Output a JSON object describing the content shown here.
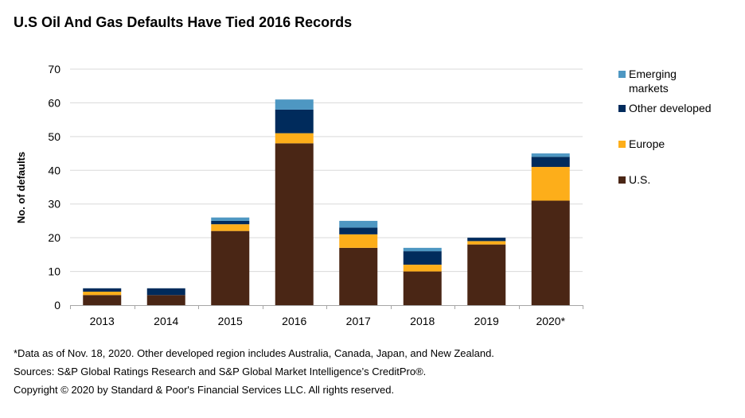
{
  "title": "U.S Oil And Gas Defaults Have Tied 2016 Records",
  "chart_data": {
    "type": "bar",
    "stacked": true,
    "title": "U.S Oil And Gas Defaults Have Tied 2016 Records",
    "xlabel": "",
    "ylabel": "No. of defaults",
    "ylim": [
      0,
      70
    ],
    "yticks": [
      0,
      10,
      20,
      30,
      40,
      50,
      60,
      70
    ],
    "grid": true,
    "legend_position": "right",
    "categories": [
      "2013",
      "2014",
      "2015",
      "2016",
      "2017",
      "2018",
      "2019",
      "2020*"
    ],
    "series": [
      {
        "name": "U.S.",
        "color": "#4a2615",
        "values": [
          3,
          3,
          22,
          48,
          17,
          10,
          18,
          31
        ]
      },
      {
        "name": "Europe",
        "color": "#fdae1a",
        "values": [
          1,
          0,
          2,
          3,
          4,
          2,
          1,
          10
        ]
      },
      {
        "name": "Other developed",
        "color": "#002b5c",
        "values": [
          1,
          2,
          1,
          7,
          2,
          4,
          1,
          3
        ]
      },
      {
        "name": "Emerging markets",
        "color": "#4e97c2",
        "values": [
          0,
          0,
          1,
          3,
          2,
          1,
          0,
          1
        ]
      }
    ],
    "legend_order": [
      "Emerging markets",
      "Other developed",
      "Europe",
      "U.S."
    ]
  },
  "legend": [
    {
      "label": "Emerging markets",
      "color": "#4e97c2"
    },
    {
      "label": "Other developed",
      "color": "#002b5c"
    },
    {
      "label": "Europe",
      "color": "#fdae1a"
    },
    {
      "label": "U.S.",
      "color": "#4a2615"
    }
  ],
  "notes": {
    "footnote": "*Data as of Nov. 18, 2020. Other developed region includes Australia, Canada, Japan, and New Zealand.",
    "sources": "Sources: S&P Global Ratings Research and S&P Global Market Intelligence’s CreditPro®.",
    "copyright": "Copyright © 2020 by Standard & Poor's Financial Services LLC. All rights reserved."
  }
}
